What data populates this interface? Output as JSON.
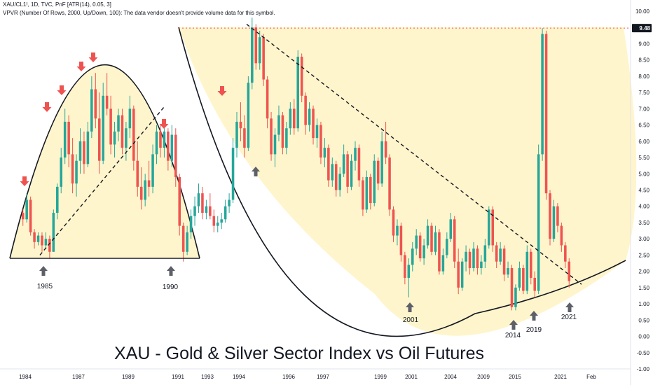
{
  "header": {
    "line1": "XAU/CL1!, 1D, TVC, PnF [ATR(14), 0.05, 3]",
    "line2": "VPVR (Number Of Rows, 2000, Up/Down, 100): The data vendor doesn't provide volume data for this symbol."
  },
  "chart_data": {
    "type": "candlestick",
    "title": "XAU - Gold & Silver Sector Index vs Oil Futures",
    "y_axis": {
      "ticks": [
        10.0,
        9.5,
        9.0,
        8.5,
        8.0,
        7.5,
        7.0,
        6.5,
        6.0,
        5.5,
        5.0,
        4.5,
        4.0,
        3.5,
        3.0,
        2.5,
        2.0,
        1.5,
        1.0,
        0.5,
        0.0,
        -0.5,
        -1.0
      ],
      "labels": [
        "10.00",
        "9.50",
        "9.00",
        "8.50",
        "8.00",
        "7.50",
        "7.00",
        "6.50",
        "6.00",
        "5.50",
        "5.00",
        "4.50",
        "4.00",
        "3.50",
        "3.00",
        "2.50",
        "2.00",
        "1.50",
        "1.00",
        "0.50",
        "0.00",
        "-0.50",
        "-1.00"
      ],
      "range": [
        -1.0,
        10.0
      ]
    },
    "x_axis": {
      "labels": [
        "1984",
        "1987",
        "1989",
        "1991",
        "1993",
        "1994",
        "1996",
        "1997",
        "1999",
        "2001",
        "2004",
        "2009",
        "2015",
        "2021",
        "Feb"
      ]
    },
    "price_marker": {
      "value": 9.48,
      "label": "9.48"
    },
    "series": [
      {
        "values": [
          [
            3.8,
            3.9,
            3.4,
            3.6
          ],
          [
            3.6,
            4.4,
            3.5,
            4.2
          ],
          [
            4.2,
            4.3,
            3.1,
            3.2
          ],
          [
            3.2,
            3.3,
            2.7,
            2.9
          ],
          [
            2.9,
            3.2,
            2.8,
            3.1
          ],
          [
            3.1,
            3.2,
            2.6,
            2.8
          ],
          [
            2.8,
            3.2,
            2.7,
            3.0
          ],
          [
            3.0,
            3.1,
            2.4,
            2.6
          ],
          [
            2.6,
            3.9,
            2.6,
            3.8
          ],
          [
            3.8,
            4.7,
            3.6,
            4.6
          ],
          [
            4.6,
            5.8,
            4.4,
            5.5
          ],
          [
            5.5,
            7.0,
            5.3,
            6.6
          ],
          [
            6.6,
            6.8,
            5.2,
            5.6
          ],
          [
            5.6,
            6.1,
            4.4,
            4.7
          ],
          [
            4.7,
            5.6,
            4.3,
            5.4
          ],
          [
            5.4,
            6.4,
            5.0,
            6.0
          ],
          [
            6.0,
            6.3,
            5.0,
            5.3
          ],
          [
            5.3,
            6.6,
            5.2,
            6.3
          ],
          [
            6.3,
            8.0,
            6.1,
            7.6
          ],
          [
            7.6,
            8.1,
            6.4,
            6.7
          ],
          [
            6.7,
            7.5,
            5.0,
            5.4
          ],
          [
            5.4,
            7.8,
            5.3,
            7.4
          ],
          [
            7.4,
            8.1,
            6.8,
            7.0
          ],
          [
            7.0,
            7.4,
            5.6,
            5.9
          ],
          [
            5.9,
            6.6,
            5.5,
            6.3
          ],
          [
            6.3,
            7.0,
            6.0,
            6.8
          ],
          [
            6.8,
            7.0,
            5.6,
            5.8
          ],
          [
            5.8,
            6.6,
            5.4,
            6.4
          ],
          [
            6.4,
            7.4,
            6.1,
            7.0
          ],
          [
            7.0,
            7.1,
            5.1,
            5.4
          ],
          [
            5.4,
            6.0,
            4.3,
            4.6
          ],
          [
            4.6,
            5.2,
            3.9,
            4.2
          ],
          [
            4.2,
            5.0,
            4.0,
            4.8
          ],
          [
            4.8,
            5.4,
            4.3,
            4.6
          ],
          [
            4.6,
            5.9,
            4.4,
            5.6
          ],
          [
            5.6,
            6.5,
            5.3,
            6.3
          ],
          [
            6.3,
            6.5,
            5.5,
            5.8
          ],
          [
            5.8,
            6.6,
            5.5,
            6.3
          ],
          [
            6.3,
            6.4,
            5.1,
            5.4
          ],
          [
            5.4,
            6.5,
            5.2,
            6.2
          ],
          [
            6.2,
            6.4,
            4.6,
            4.9
          ],
          [
            4.9,
            5.0,
            3.1,
            3.4
          ],
          [
            3.4,
            3.5,
            2.3,
            2.6
          ],
          [
            2.6,
            3.4,
            2.5,
            3.2
          ],
          [
            3.2,
            3.9,
            3.0,
            3.7
          ],
          [
            3.7,
            4.3,
            3.4,
            4.0
          ],
          [
            4.0,
            4.7,
            3.8,
            4.4
          ],
          [
            4.4,
            4.6,
            3.6,
            3.8
          ],
          [
            3.8,
            4.2,
            3.6,
            4.0
          ],
          [
            4.0,
            4.4,
            3.6,
            3.7
          ],
          [
            3.7,
            3.9,
            3.2,
            3.4
          ],
          [
            3.4,
            3.7,
            3.2,
            3.5
          ],
          [
            3.5,
            3.8,
            3.3,
            3.6
          ],
          [
            3.6,
            4.2,
            3.5,
            4.0
          ],
          [
            4.0,
            4.4,
            3.8,
            4.2
          ],
          [
            4.2,
            6.1,
            4.1,
            5.8
          ],
          [
            5.8,
            6.9,
            5.5,
            6.6
          ],
          [
            6.6,
            7.2,
            6.0,
            6.4
          ],
          [
            6.4,
            6.8,
            5.5,
            5.8
          ],
          [
            5.8,
            8.0,
            5.7,
            7.8
          ],
          [
            7.8,
            9.8,
            7.6,
            9.5
          ],
          [
            9.5,
            9.6,
            8.2,
            8.4
          ],
          [
            8.4,
            9.4,
            8.2,
            9.2
          ],
          [
            9.2,
            9.3,
            7.7,
            7.9
          ],
          [
            7.9,
            8.0,
            6.4,
            6.7
          ],
          [
            6.7,
            6.9,
            5.4,
            5.6
          ],
          [
            5.6,
            6.4,
            5.2,
            6.2
          ],
          [
            6.2,
            7.1,
            6.0,
            6.8
          ],
          [
            6.8,
            6.9,
            5.6,
            5.8
          ],
          [
            5.8,
            6.6,
            5.6,
            6.4
          ],
          [
            6.4,
            7.2,
            6.2,
            7.0
          ],
          [
            7.0,
            7.3,
            6.2,
            6.4
          ],
          [
            6.4,
            8.8,
            6.3,
            8.6
          ],
          [
            8.6,
            8.7,
            7.2,
            7.4
          ],
          [
            7.4,
            7.5,
            6.2,
            6.5
          ],
          [
            6.5,
            7.2,
            6.3,
            7.0
          ],
          [
            7.0,
            7.1,
            5.9,
            6.1
          ],
          [
            6.1,
            6.7,
            5.8,
            6.5
          ],
          [
            6.5,
            6.6,
            5.3,
            5.5
          ],
          [
            5.5,
            6.1,
            5.2,
            5.8
          ],
          [
            5.8,
            5.9,
            4.6,
            4.8
          ],
          [
            4.8,
            5.5,
            4.6,
            5.3
          ],
          [
            5.3,
            5.4,
            4.3,
            4.5
          ],
          [
            4.5,
            5.2,
            4.3,
            5.0
          ],
          [
            5.0,
            5.9,
            4.9,
            5.6
          ],
          [
            5.6,
            5.7,
            4.4,
            4.6
          ],
          [
            4.6,
            5.6,
            4.5,
            5.4
          ],
          [
            5.4,
            6.0,
            5.1,
            5.8
          ],
          [
            5.8,
            5.9,
            4.6,
            4.8
          ],
          [
            4.8,
            4.9,
            3.7,
            3.9
          ],
          [
            3.9,
            5.1,
            3.8,
            4.9
          ],
          [
            4.9,
            5.0,
            3.9,
            4.1
          ],
          [
            4.1,
            5.6,
            4.0,
            5.4
          ],
          [
            5.4,
            5.5,
            4.5,
            4.7
          ],
          [
            4.7,
            6.3,
            4.6,
            6.0
          ],
          [
            6.0,
            6.6,
            5.3,
            5.5
          ],
          [
            5.5,
            5.6,
            3.7,
            3.9
          ],
          [
            3.9,
            4.0,
            2.9,
            3.1
          ],
          [
            3.1,
            3.6,
            2.8,
            3.4
          ],
          [
            3.4,
            3.5,
            2.3,
            2.5
          ],
          [
            2.5,
            2.6,
            1.6,
            1.8
          ],
          [
            1.8,
            2.4,
            1.2,
            2.2
          ],
          [
            2.2,
            2.9,
            2.0,
            2.7
          ],
          [
            2.7,
            3.3,
            2.5,
            3.1
          ],
          [
            3.1,
            3.2,
            2.3,
            2.4
          ],
          [
            2.4,
            3.0,
            2.2,
            2.8
          ],
          [
            2.8,
            3.6,
            2.7,
            3.4
          ],
          [
            3.4,
            3.5,
            2.5,
            2.6
          ],
          [
            2.6,
            3.4,
            2.5,
            3.2
          ],
          [
            3.2,
            3.3,
            1.9,
            2.0
          ],
          [
            2.0,
            2.7,
            1.9,
            2.5
          ],
          [
            2.5,
            3.2,
            2.4,
            3.0
          ],
          [
            3.0,
            3.8,
            2.9,
            3.6
          ],
          [
            3.6,
            3.7,
            2.1,
            2.3
          ],
          [
            2.3,
            2.7,
            1.3,
            1.5
          ],
          [
            1.5,
            2.4,
            1.4,
            2.3
          ],
          [
            2.3,
            2.8,
            2.0,
            2.6
          ],
          [
            2.6,
            2.7,
            1.9,
            2.1
          ],
          [
            2.1,
            2.9,
            2.0,
            2.7
          ],
          [
            2.7,
            2.8,
            1.9,
            2.1
          ],
          [
            2.1,
            2.5,
            1.9,
            2.3
          ],
          [
            2.3,
            3.0,
            2.1,
            2.8
          ],
          [
            2.8,
            4.0,
            2.7,
            3.9
          ],
          [
            3.9,
            4.0,
            2.6,
            2.8
          ],
          [
            2.8,
            2.9,
            2.1,
            2.3
          ],
          [
            2.3,
            2.9,
            2.2,
            2.7
          ],
          [
            2.7,
            2.8,
            1.7,
            1.9
          ],
          [
            1.9,
            2.3,
            1.8,
            2.1
          ],
          [
            2.1,
            2.2,
            0.8,
            0.9
          ],
          [
            0.9,
            1.6,
            0.8,
            1.5
          ],
          [
            1.5,
            2.3,
            1.4,
            2.1
          ],
          [
            2.1,
            2.2,
            1.3,
            1.4
          ],
          [
            1.4,
            2.8,
            1.3,
            2.6
          ],
          [
            2.6,
            2.7,
            1.6,
            1.8
          ],
          [
            1.8,
            2.0,
            1.2,
            1.4
          ],
          [
            1.4,
            5.9,
            1.3,
            5.6
          ],
          [
            5.6,
            9.48,
            5.4,
            9.3
          ],
          [
            9.3,
            9.4,
            4.2,
            4.4
          ],
          [
            4.4,
            4.5,
            2.8,
            3.0
          ],
          [
            3.0,
            4.2,
            2.9,
            4.0
          ],
          [
            4.0,
            4.1,
            3.2,
            3.4
          ],
          [
            3.4,
            3.5,
            2.6,
            2.8
          ],
          [
            2.8,
            2.9,
            2.1,
            2.3
          ],
          [
            2.3,
            2.4,
            1.5,
            1.7
          ]
        ]
      }
    ],
    "annotations": {
      "year_labels": [
        "1985",
        "1990",
        "2001",
        "2014",
        "2019",
        "2021"
      ]
    },
    "colors": {
      "up": "#26a69a",
      "down": "#ef5350",
      "fill": "#fff5cc",
      "arrow_down": "#ef5350",
      "arrow_up": "#5d6069"
    }
  }
}
